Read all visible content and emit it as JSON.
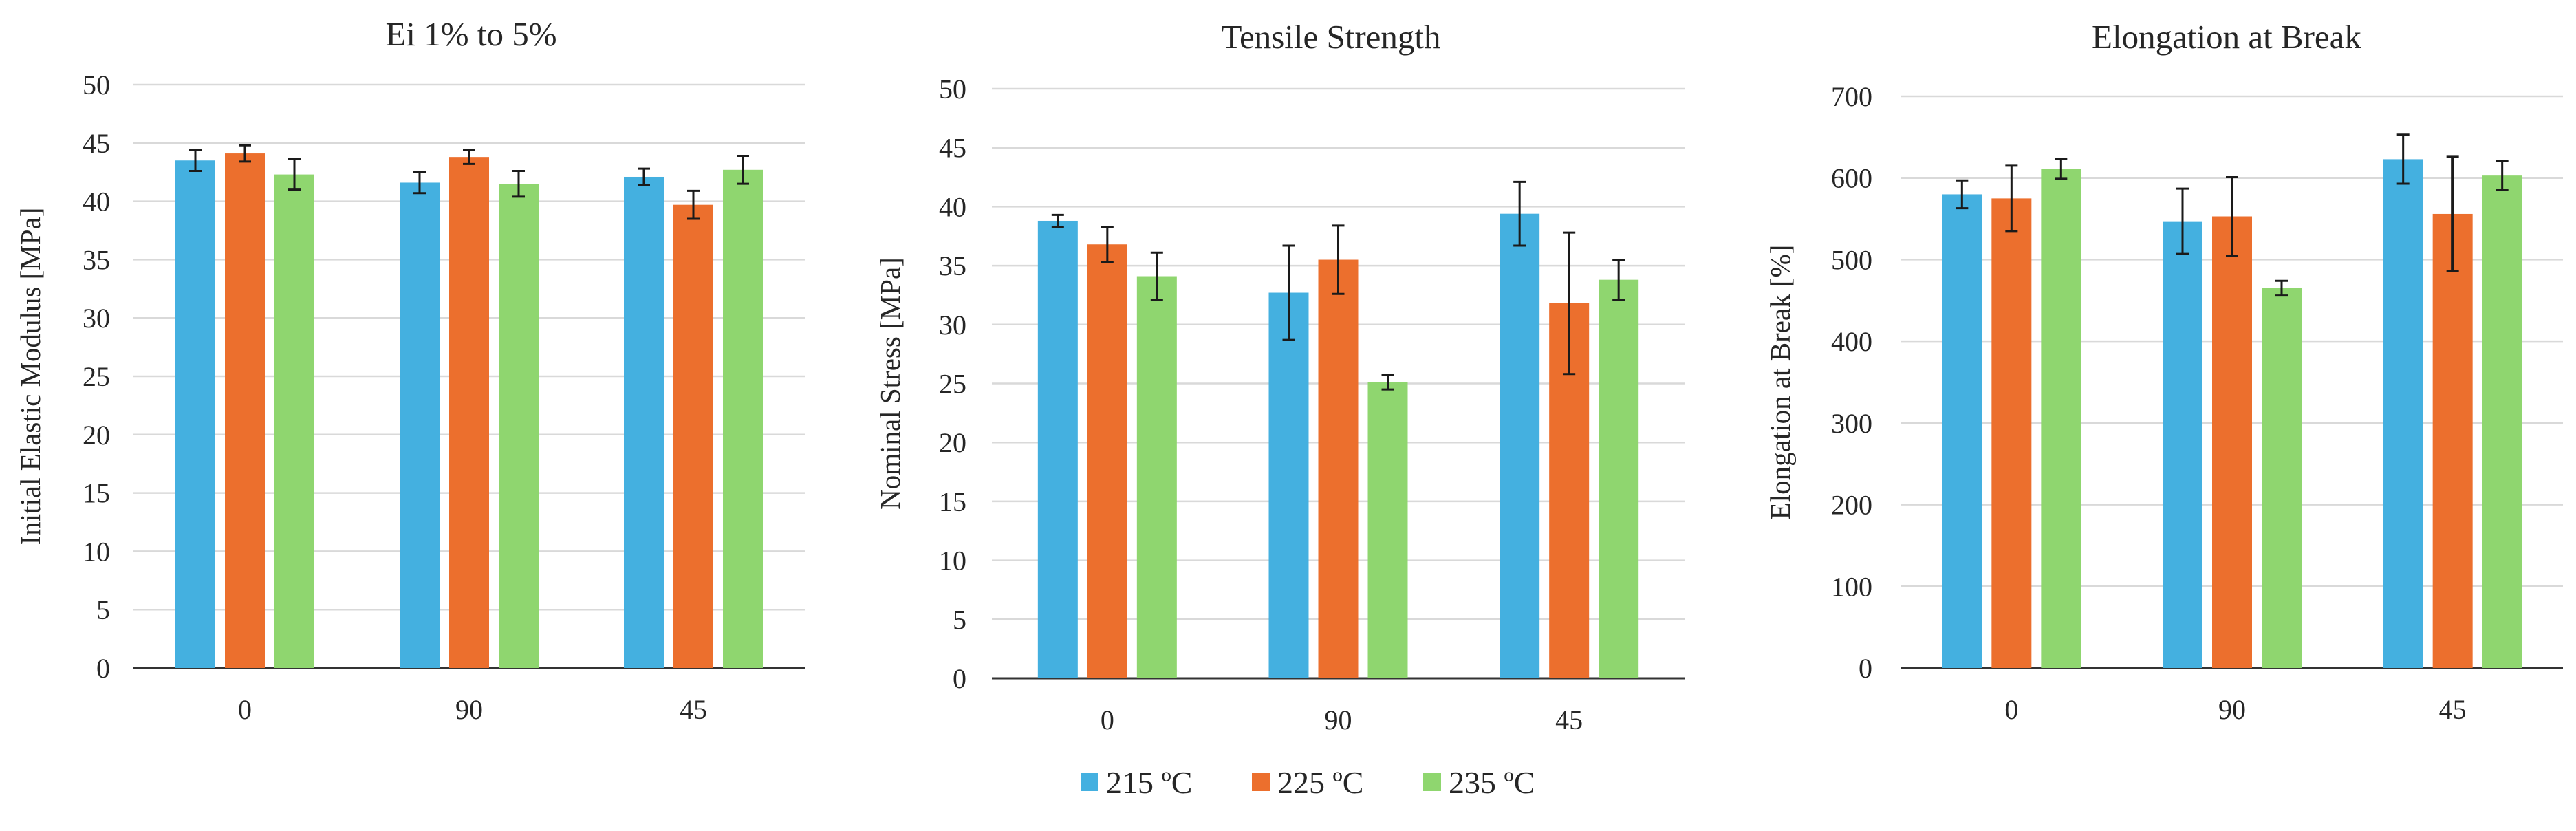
{
  "chart_data": [
    {
      "type": "bar",
      "title": "Ei 1% to 5%",
      "xlabel": "",
      "ylabel": "Initial Elastic Modulus [MPa]",
      "ylim": [
        0,
        50
      ],
      "yticks": [
        0,
        5,
        10,
        15,
        20,
        25,
        30,
        35,
        40,
        45,
        50
      ],
      "grid": true,
      "categories": [
        "0",
        "90",
        "45"
      ],
      "series": [
        {
          "name": "215 ºC",
          "values": [
            43.5,
            41.6,
            42.1
          ],
          "errors": [
            0.9,
            0.9,
            0.7
          ]
        },
        {
          "name": "225 ºC",
          "values": [
            44.1,
            43.8,
            39.7
          ],
          "errors": [
            0.7,
            0.6,
            1.2
          ]
        },
        {
          "name": "235 ºC",
          "values": [
            42.3,
            41.5,
            42.7
          ],
          "errors": [
            1.3,
            1.1,
            1.2
          ]
        }
      ]
    },
    {
      "type": "bar",
      "title": "Tensile Strength",
      "xlabel": "",
      "ylabel": "Nominal Stress [MPa]",
      "ylim": [
        0,
        50
      ],
      "yticks": [
        0,
        5,
        10,
        15,
        20,
        25,
        30,
        35,
        40,
        45,
        50
      ],
      "grid": true,
      "categories": [
        "0",
        "90",
        "45"
      ],
      "series": [
        {
          "name": "215 ºC",
          "values": [
            38.8,
            32.7,
            39.4
          ],
          "errors": [
            0.5,
            4.0,
            2.7
          ]
        },
        {
          "name": "225 ºC",
          "values": [
            36.8,
            35.5,
            31.8
          ],
          "errors": [
            1.5,
            2.9,
            6.0
          ]
        },
        {
          "name": "235 ºC",
          "values": [
            34.1,
            25.1,
            33.8
          ],
          "errors": [
            2.0,
            0.6,
            1.7
          ]
        }
      ]
    },
    {
      "type": "bar",
      "title": "Elongation at Break",
      "xlabel": "",
      "ylabel": "Elongation at Break [%]",
      "ylim": [
        0,
        700
      ],
      "yticks": [
        0,
        100,
        200,
        300,
        400,
        500,
        600,
        700
      ],
      "grid": true,
      "categories": [
        "0",
        "90",
        "45"
      ],
      "series": [
        {
          "name": "215 ºC",
          "values": [
            580,
            547,
            623
          ],
          "errors": [
            17,
            40,
            30
          ]
        },
        {
          "name": "225 ºC",
          "values": [
            575,
            553,
            556
          ],
          "errors": [
            40,
            48,
            70
          ]
        },
        {
          "name": "235 ºC",
          "values": [
            611,
            465,
            603
          ],
          "errors": [
            12,
            9,
            18
          ]
        }
      ]
    }
  ],
  "legend": {
    "position": "bottom-center",
    "items": [
      {
        "label": "215 ºC",
        "color": "#44b0e0"
      },
      {
        "label": "225 ºC",
        "color": "#ec6f2d"
      },
      {
        "label": "235 ºC",
        "color": "#8fd66f"
      }
    ]
  },
  "colors": {
    "series": [
      "#44b0e0",
      "#ec6f2d",
      "#8fd66f"
    ],
    "grid": "#d9d9d9",
    "axis": "#333333"
  }
}
